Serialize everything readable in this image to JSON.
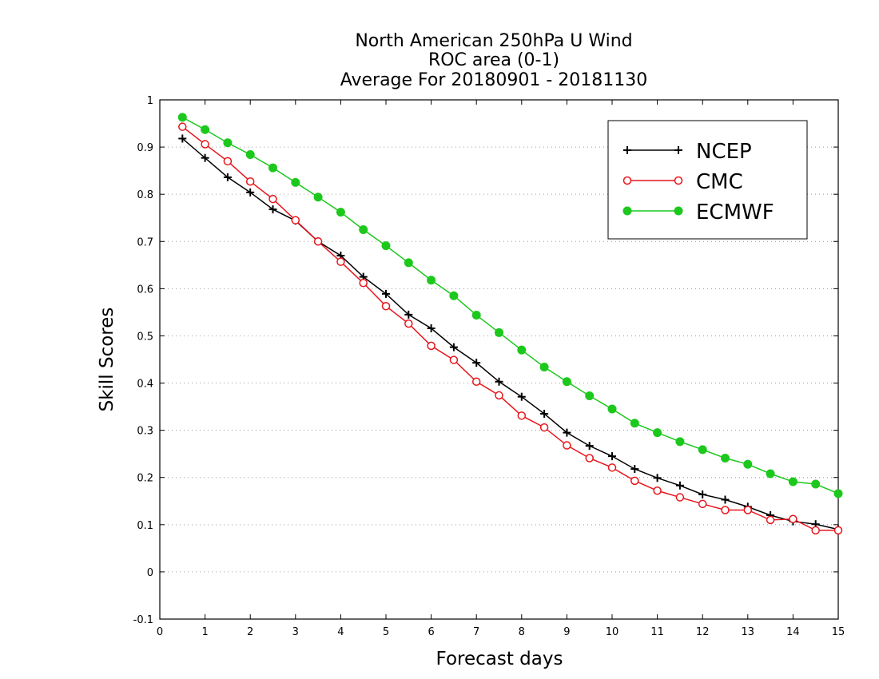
{
  "chart_data": {
    "type": "line",
    "title": [
      "North American 250hPa U Wind",
      "ROC area (0-1)",
      "Average For 20180901 - 20181130"
    ],
    "xlabel": "Forecast days",
    "ylabel": "Skill Scores",
    "xlim": [
      0,
      15
    ],
    "ylim": [
      -0.1,
      1
    ],
    "xticks": [
      0,
      1,
      2,
      3,
      4,
      5,
      6,
      7,
      8,
      9,
      10,
      11,
      12,
      13,
      14,
      15
    ],
    "xtick_labels": [
      "0",
      "1",
      "2",
      "3",
      "4",
      "5",
      "6",
      "7",
      "8",
      "9",
      "10",
      "11",
      "12",
      "13",
      "14",
      "15"
    ],
    "yticks": [
      -0.1,
      0,
      0.1,
      0.2,
      0.3,
      0.4,
      0.5,
      0.6,
      0.7,
      0.8,
      0.9,
      1
    ],
    "ytick_labels": [
      "-0.1",
      "0",
      "0.1",
      "0.2",
      "0.3",
      "0.4",
      "0.5",
      "0.6",
      "0.7",
      "0.8",
      "0.9",
      "1"
    ],
    "grid": "horizontal dotted",
    "legend_position": "top-right",
    "x": [
      0.5,
      1,
      1.5,
      2,
      2.5,
      3,
      3.5,
      4,
      4.5,
      5,
      5.5,
      6,
      6.5,
      7,
      7.5,
      8,
      8.5,
      9,
      9.5,
      10,
      10.5,
      11,
      11.5,
      12,
      12.5,
      13,
      13.5,
      14,
      14.5,
      15
    ],
    "series": [
      {
        "name": "NCEP",
        "color": "#000000",
        "marker": "plus",
        "values": [
          0.918,
          0.877,
          0.836,
          0.804,
          0.768,
          0.744,
          0.7,
          0.67,
          0.625,
          0.589,
          0.545,
          0.516,
          0.476,
          0.443,
          0.403,
          0.371,
          0.335,
          0.295,
          0.267,
          0.245,
          0.218,
          0.199,
          0.183,
          0.164,
          0.153,
          0.138,
          0.12,
          0.107,
          0.101,
          0.09
        ]
      },
      {
        "name": "CMC",
        "color": "#e8141b",
        "marker": "open-circle",
        "values": [
          0.943,
          0.906,
          0.87,
          0.827,
          0.79,
          0.745,
          0.7,
          0.657,
          0.612,
          0.563,
          0.526,
          0.479,
          0.449,
          0.403,
          0.374,
          0.331,
          0.306,
          0.268,
          0.241,
          0.221,
          0.193,
          0.172,
          0.158,
          0.144,
          0.131,
          0.131,
          0.11,
          0.112,
          0.088,
          0.088
        ]
      },
      {
        "name": "ECMWF",
        "color": "#1cc81c",
        "marker": "filled-circle",
        "values": [
          0.963,
          0.937,
          0.909,
          0.884,
          0.856,
          0.825,
          0.794,
          0.762,
          0.725,
          0.691,
          0.655,
          0.618,
          0.585,
          0.544,
          0.507,
          0.47,
          0.434,
          0.403,
          0.373,
          0.345,
          0.315,
          0.295,
          0.276,
          0.259,
          0.241,
          0.228,
          0.208,
          0.191,
          0.186,
          0.166
        ]
      }
    ]
  }
}
